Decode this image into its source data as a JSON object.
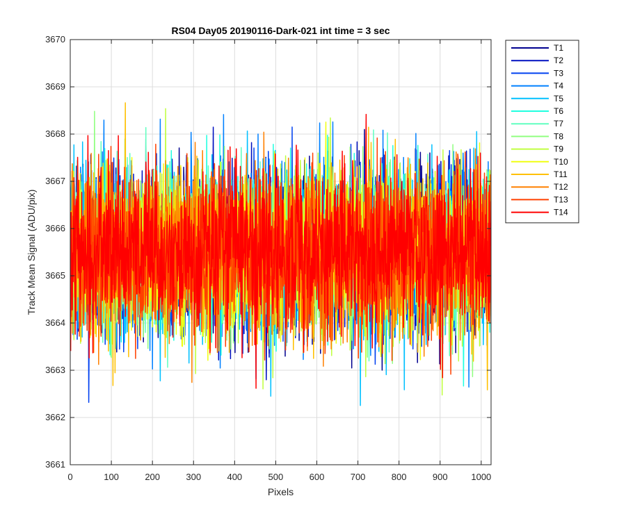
{
  "chart_data": {
    "type": "line",
    "title": "RS04 Day05 20190116-Dark-021 int time = 3 sec",
    "xlabel": "Pixels",
    "ylabel": "Track Mean Signal (ADU/pix)",
    "xlim": [
      0,
      1024
    ],
    "ylim": [
      3661,
      3670
    ],
    "xticks": [
      0,
      100,
      200,
      300,
      400,
      500,
      600,
      700,
      800,
      900,
      1000
    ],
    "yticks": [
      3661,
      3662,
      3663,
      3664,
      3665,
      3666,
      3667,
      3668,
      3669,
      3670
    ],
    "grid": true,
    "legend_position": "outside-top-right",
    "noise": {
      "mean": 3665.5,
      "approx_std": 0.85,
      "points_per_series": 1024
    },
    "series": [
      {
        "name": "T1",
        "color": "#00008F",
        "mean": 3665.55
      },
      {
        "name": "T2",
        "color": "#0010C0",
        "mean": 3665.5
      },
      {
        "name": "T3",
        "color": "#0040F0",
        "mean": 3665.5
      },
      {
        "name": "T4",
        "color": "#0080FF",
        "mean": 3665.5
      },
      {
        "name": "T5",
        "color": "#00C0FF",
        "mean": 3665.5
      },
      {
        "name": "T6",
        "color": "#20FFE0",
        "mean": 3665.5
      },
      {
        "name": "T7",
        "color": "#60FFC0",
        "mean": 3665.5
      },
      {
        "name": "T8",
        "color": "#90FF80",
        "mean": 3665.5
      },
      {
        "name": "T9",
        "color": "#C0FF40",
        "mean": 3665.5
      },
      {
        "name": "T10",
        "color": "#F0FF10",
        "mean": 3665.5
      },
      {
        "name": "T11",
        "color": "#FFC000",
        "mean": 3665.5
      },
      {
        "name": "T12",
        "color": "#FF8000",
        "mean": 3665.45
      },
      {
        "name": "T13",
        "color": "#FF4000",
        "mean": 3665.45
      },
      {
        "name": "T14",
        "color": "#FF0000",
        "mean": 3665.6
      }
    ]
  }
}
